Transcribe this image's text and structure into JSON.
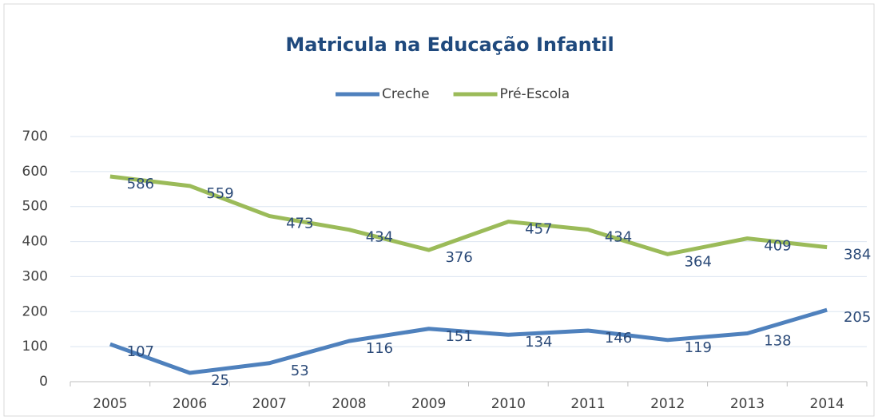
{
  "chart_data": {
    "type": "line",
    "title": "Matricula na Educação Infantil",
    "categories": [
      "2005",
      "2006",
      "2007",
      "2008",
      "2009",
      "2010",
      "2011",
      "2012",
      "2013",
      "2014"
    ],
    "series": [
      {
        "name": "Creche",
        "color": "#4f81bd",
        "values": [
          107,
          25,
          53,
          116,
          151,
          134,
          146,
          119,
          138,
          205
        ]
      },
      {
        "name": "Pré-Escola",
        "color": "#9bbb59",
        "values": [
          586,
          559,
          473,
          434,
          376,
          457,
          434,
          364,
          409,
          384
        ]
      }
    ],
    "ylim": [
      0,
      700
    ],
    "yticks": [
      0,
      100,
      200,
      300,
      400,
      500,
      600,
      700
    ],
    "grid": true,
    "legend": "top"
  }
}
